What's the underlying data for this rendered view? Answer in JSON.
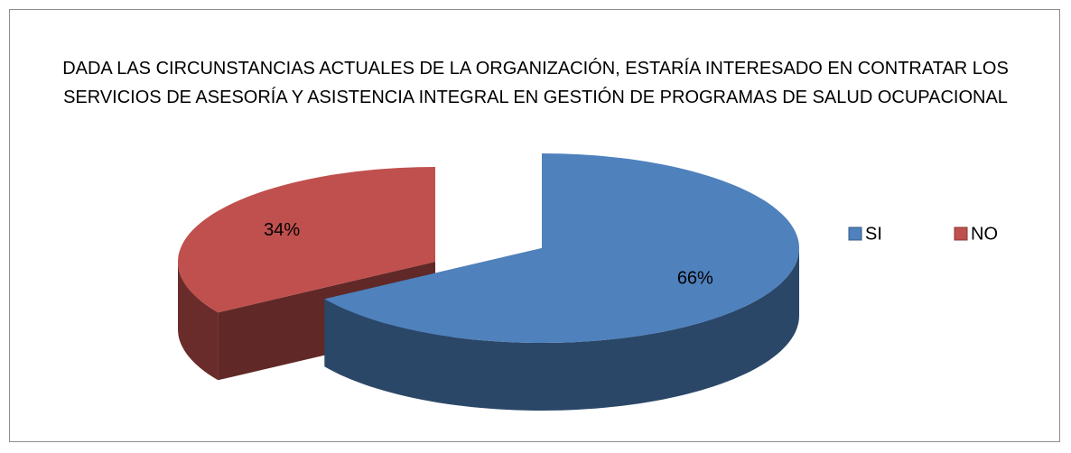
{
  "chart_data": {
    "type": "pie",
    "title": "DADA LAS CIRCUNSTANCIAS  ACTUALES DE LA ORGANIZACIÓN, ESTARÍA INTERESADO EN CONTRATAR LOS SERVICIOS DE ASESORÍA Y ASISTENCIA INTEGRAL EN GESTIÓN DE PROGRAMAS DE SALUD OCUPACIONAL",
    "categories": [
      "SI",
      "NO"
    ],
    "values": [
      66,
      34
    ],
    "value_labels": [
      "66%",
      "34%"
    ],
    "colors": [
      "#4f81bd",
      "#c0504d"
    ],
    "legend": "right"
  }
}
